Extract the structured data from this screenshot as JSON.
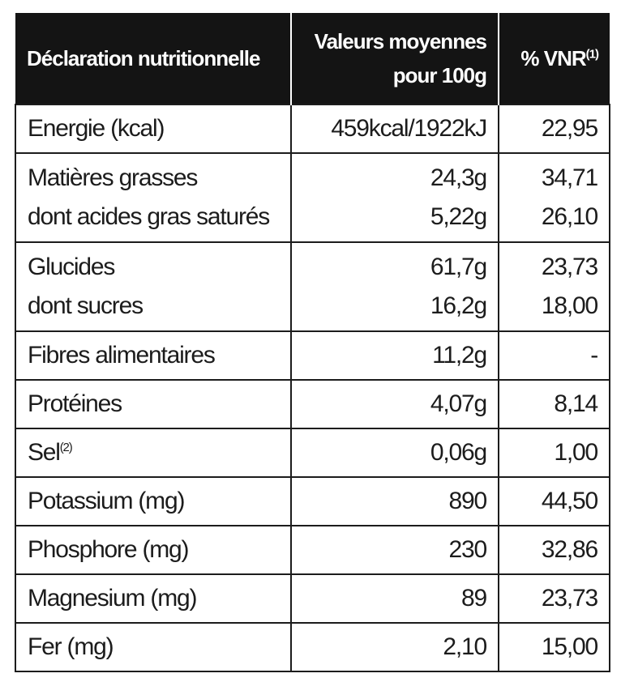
{
  "header": {
    "name": "Déclaration nutritionnelle",
    "values_line1": "Valeurs moyennes",
    "values_line2": "pour 100g",
    "vnr": "% VNR",
    "vnr_note": "(1)"
  },
  "rows": [
    {
      "name": "Energie (kcal)",
      "value": "459kcal/1922kJ",
      "vnr": "22,95"
    },
    {
      "name": "Matières grasses",
      "value": "24,3g",
      "vnr": "34,71",
      "sub_name": "dont acides gras saturés",
      "sub_value": "5,22g",
      "sub_vnr": "26,10"
    },
    {
      "name": "Glucides",
      "value": "61,7g",
      "vnr": "23,73",
      "sub_name": "dont sucres",
      "sub_value": "16,2g",
      "sub_vnr": "18,00"
    },
    {
      "name": "Fibres alimentaires",
      "value": "11,2g",
      "vnr": "-"
    },
    {
      "name": "Protéines",
      "value": "4,07g",
      "vnr": "8,14"
    },
    {
      "name": "Sel",
      "note": "(2)",
      "value": "0,06g",
      "vnr": "1,00"
    },
    {
      "name": "Potassium (mg)",
      "value": "890",
      "vnr": "44,50"
    },
    {
      "name": "Phosphore (mg)",
      "value": "230",
      "vnr": "32,86"
    },
    {
      "name": "Magnesium (mg)",
      "value": "89",
      "vnr": "23,73"
    },
    {
      "name": "Fer (mg)",
      "value": "2,10",
      "vnr": "15,00"
    }
  ]
}
